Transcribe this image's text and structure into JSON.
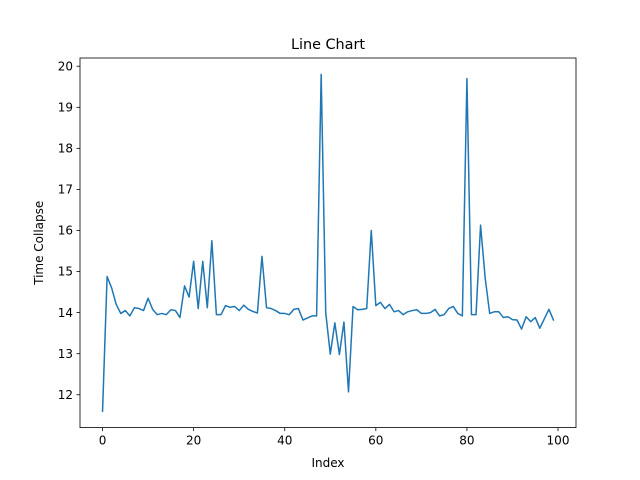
{
  "chart_data": {
    "type": "line",
    "title": "Line Chart",
    "xlabel": "Index",
    "ylabel": "Time Collapse",
    "xlim": [
      -4.95,
      103.95
    ],
    "ylim": [
      11.2,
      20.2
    ],
    "xticks": [
      0,
      20,
      40,
      60,
      80,
      100
    ],
    "yticks": [
      12,
      13,
      14,
      15,
      16,
      17,
      18,
      19,
      20
    ],
    "grid": false,
    "line_color": "#1f77b4",
    "series": [
      {
        "x": [
          0,
          1,
          2,
          3,
          4,
          5,
          6,
          7,
          8,
          9,
          10,
          11,
          12,
          13,
          14,
          15,
          16,
          17,
          18,
          19,
          20,
          21,
          22,
          23,
          24,
          25,
          26,
          27,
          28,
          29,
          30,
          31,
          32,
          33,
          34,
          35,
          36,
          37,
          38,
          39,
          40,
          41,
          42,
          43,
          44,
          45,
          46,
          47,
          48,
          49,
          50,
          51,
          52,
          53,
          54,
          55,
          56,
          57,
          58,
          59,
          60,
          61,
          62,
          63,
          64,
          65,
          66,
          67,
          68,
          69,
          70,
          71,
          72,
          73,
          74,
          75,
          76,
          77,
          78,
          79,
          80,
          81,
          82,
          83,
          84,
          85,
          86,
          87,
          88,
          89,
          90,
          91,
          92,
          93,
          94,
          95,
          96,
          97,
          98,
          99
        ],
        "y": [
          11.6,
          14.88,
          14.6,
          14.2,
          13.98,
          14.05,
          13.92,
          14.12,
          14.1,
          14.05,
          14.35,
          14.08,
          13.95,
          13.98,
          13.95,
          14.07,
          14.05,
          13.88,
          14.65,
          14.38,
          15.25,
          14.1,
          15.25,
          14.12,
          15.75,
          13.95,
          13.95,
          14.17,
          14.13,
          14.15,
          14.05,
          14.18,
          14.08,
          14.03,
          13.99,
          15.37,
          14.12,
          14.1,
          14.05,
          13.98,
          13.98,
          13.95,
          14.08,
          14.1,
          13.82,
          13.87,
          13.92,
          13.92,
          19.8,
          14.0,
          12.99,
          13.75,
          12.98,
          13.77,
          12.07,
          14.15,
          14.07,
          14.08,
          14.1,
          16.0,
          14.17,
          14.25,
          14.1,
          14.2,
          14.02,
          14.05,
          13.95,
          14.02,
          14.05,
          14.07,
          13.98,
          13.98,
          14.0,
          14.08,
          13.92,
          13.95,
          14.1,
          14.15,
          13.98,
          13.92,
          19.7,
          13.95,
          13.95,
          16.13,
          14.85,
          13.98,
          14.02,
          14.02,
          13.88,
          13.9,
          13.83,
          13.82,
          13.6,
          13.9,
          13.78,
          13.88,
          13.62,
          13.85,
          14.08,
          13.82
        ]
      }
    ]
  }
}
